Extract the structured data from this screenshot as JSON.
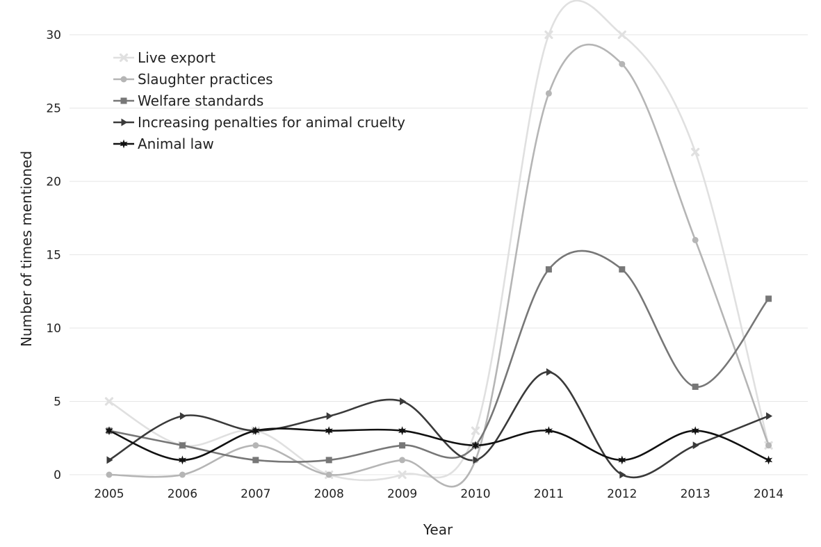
{
  "chart_data": {
    "type": "line",
    "xlabel": "Year",
    "ylabel": "Number of times mentioned",
    "categories": [
      "2005",
      "2006",
      "2007",
      "2008",
      "2009",
      "2010",
      "2011",
      "2012",
      "2013",
      "2014"
    ],
    "yticks": [
      "0",
      "5",
      "10",
      "15",
      "20",
      "25",
      "30"
    ],
    "ylim": [
      0,
      30
    ],
    "grid": true,
    "legend_position": "top-left",
    "series": [
      {
        "name": "Live export",
        "marker": "x",
        "color": "#e0e0e0",
        "values": [
          5,
          2,
          3,
          0,
          0,
          3,
          30,
          30,
          22,
          2
        ]
      },
      {
        "name": "Slaughter practices",
        "marker": "circle",
        "color": "#b5b5b5",
        "values": [
          0,
          0,
          2,
          0,
          1,
          1,
          26,
          28,
          16,
          2
        ]
      },
      {
        "name": "Welfare standards",
        "marker": "square",
        "color": "#777777",
        "values": [
          3,
          2,
          1,
          1,
          2,
          2,
          14,
          14,
          6,
          12
        ]
      },
      {
        "name": "Increasing penalties for animal cruelty",
        "marker": "triangle-right",
        "color": "#3a3a3a",
        "values": [
          1,
          4,
          3,
          4,
          5,
          1,
          7,
          0,
          2,
          4
        ]
      },
      {
        "name": "Animal law",
        "marker": "star",
        "color": "#111111",
        "values": [
          3,
          1,
          3,
          3,
          3,
          2,
          3,
          1,
          3,
          1
        ]
      }
    ]
  }
}
